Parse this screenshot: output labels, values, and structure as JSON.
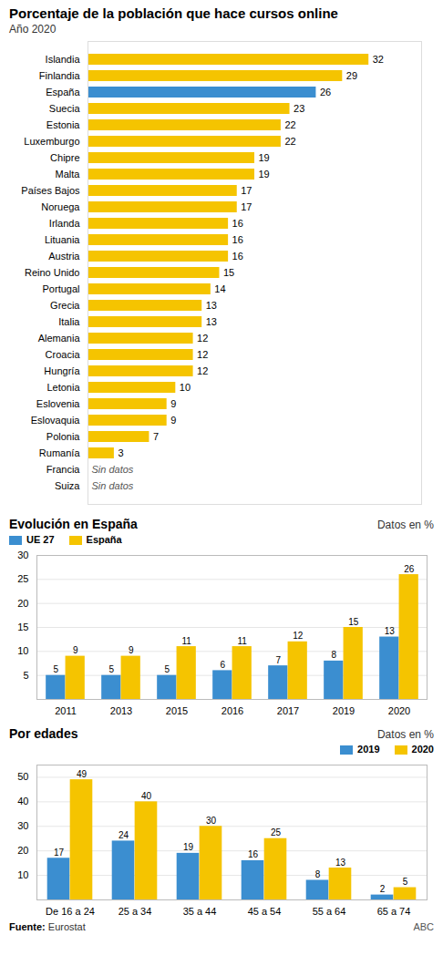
{
  "chart_data": [
    {
      "type": "bar",
      "orientation": "horizontal",
      "title": "Porcentaje de la población que hace cursos online",
      "subtitle": "Año 2020",
      "categories": [
        "Islandia",
        "Finlandia",
        "España",
        "Suecia",
        "Estonia",
        "Luxemburgo",
        "Chipre",
        "Malta",
        "Países Bajos",
        "Noruega",
        "Irlanda",
        "Lituania",
        "Austria",
        "Reino Unido",
        "Portugal",
        "Grecia",
        "Italia",
        "Alemania",
        "Croacia",
        "Hungría",
        "Letonia",
        "Eslovenia",
        "Eslovaquia",
        "Polonia",
        "Rumanía",
        "Francia",
        "Suiza"
      ],
      "values": [
        32,
        29,
        26,
        23,
        22,
        22,
        19,
        19,
        17,
        17,
        16,
        16,
        16,
        15,
        14,
        13,
        13,
        12,
        12,
        12,
        10,
        9,
        9,
        7,
        3,
        null,
        null
      ],
      "value_labels": [
        "32",
        "29",
        "26",
        "23",
        "22",
        "22",
        "19",
        "19",
        "17",
        "17",
        "16",
        "16",
        "16",
        "15",
        "14",
        "13",
        "13",
        "12",
        "12",
        "12",
        "10",
        "9",
        "9",
        "7",
        "3",
        "Sin datos",
        "Sin datos"
      ],
      "colors": [
        "#F5C400",
        "#F5C400",
        "#3B8ED0",
        "#F5C400",
        "#F5C400",
        "#F5C400",
        "#F5C400",
        "#F5C400",
        "#F5C400",
        "#F5C400",
        "#F5C400",
        "#F5C400",
        "#F5C400",
        "#F5C400",
        "#F5C400",
        "#F5C400",
        "#F5C400",
        "#F5C400",
        "#F5C400",
        "#F5C400",
        "#F5C400",
        "#F5C400",
        "#F5C400",
        "#F5C400",
        "#F5C400",
        "#F5C400",
        "#F5C400"
      ],
      "xlim": [
        0,
        38
      ],
      "data_labels": true,
      "tick_labels": "y"
    },
    {
      "type": "bar",
      "title": "Evolución en España",
      "subtitle": "Datos en %",
      "categories": [
        "2011",
        "2013",
        "2015",
        "2016",
        "2017",
        "2019",
        "2020"
      ],
      "series": [
        {
          "name": "UE 27",
          "color": "#3B8ED0",
          "values": [
            5,
            5,
            5,
            6,
            7,
            8,
            13
          ]
        },
        {
          "name": "España",
          "color": "#F5C400",
          "values": [
            9,
            9,
            11,
            11,
            12,
            15,
            26
          ]
        }
      ],
      "ylim": [
        0,
        30
      ],
      "yticks": [
        5,
        10,
        15,
        20,
        25,
        30
      ],
      "grid": true,
      "legend": "upper left",
      "data_labels": true
    },
    {
      "type": "bar",
      "title": "Por edades",
      "subtitle": "Datos en %",
      "categories": [
        "De 16 a 24",
        "25 a 34",
        "35 a 44",
        "45 a 54",
        "55 a 64",
        "65 a 74"
      ],
      "series": [
        {
          "name": "2019",
          "color": "#3B8ED0",
          "values": [
            17,
            24,
            19,
            16,
            8,
            2
          ]
        },
        {
          "name": "2020",
          "color": "#F5C400",
          "values": [
            49,
            40,
            30,
            25,
            13,
            5
          ]
        }
      ],
      "ylim": [
        0,
        55
      ],
      "yticks": [
        10,
        20,
        30,
        40,
        50
      ],
      "grid": true,
      "legend": "upper right",
      "data_labels": true,
      "annotations": [
        "Fuente:",
        "Eurostat",
        "ABC"
      ]
    }
  ]
}
